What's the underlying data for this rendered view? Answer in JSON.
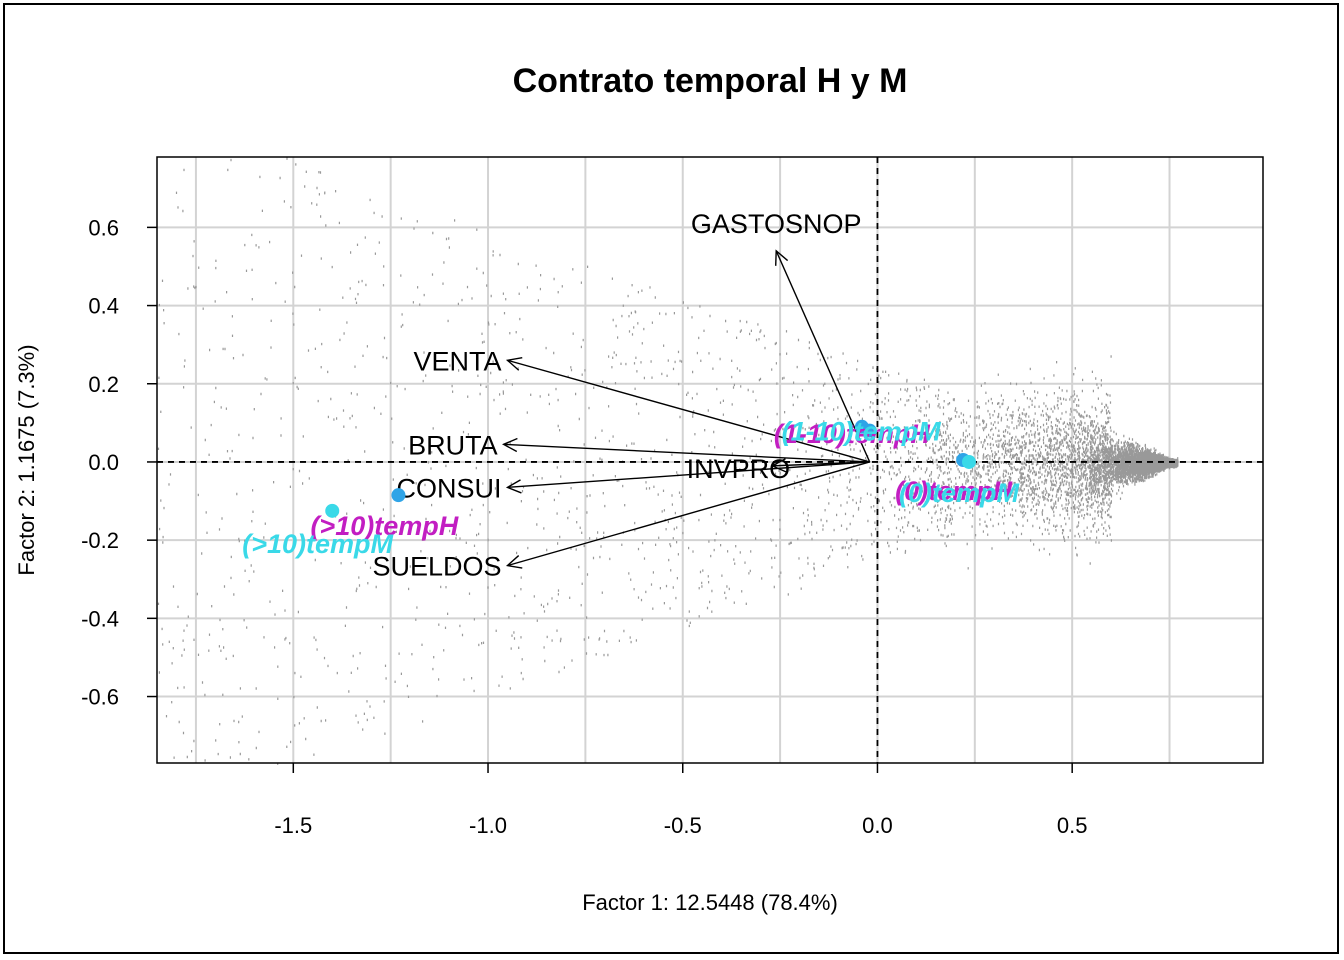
{
  "chart_data": {
    "type": "scatter",
    "title": "Contrato temporal H y M",
    "xlabel": "Factor 1: 12.5448 (78.4%)",
    "ylabel": "Factor 2: 1.1675 (7.3%)",
    "xlim": [
      -1.85,
      0.99
    ],
    "ylim": [
      -0.77,
      0.78
    ],
    "x_ticks": [
      -1.5,
      -1.0,
      -0.5,
      0.0,
      0.5
    ],
    "x_tick_labels": [
      "-1.5",
      "-1.0",
      "-0.5",
      "0.0",
      "0.5"
    ],
    "y_ticks": [
      0.6,
      0.4,
      0.2,
      0.0,
      -0.2,
      -0.4,
      -0.6
    ],
    "y_tick_labels": [
      "0.6",
      "0.4",
      "0.2",
      "0.0",
      "-0.2",
      "-0.4",
      "-0.6"
    ],
    "grid": true,
    "reference_lines": {
      "x": 0,
      "y": 0,
      "style": "dashed"
    },
    "variables": [
      {
        "label": "GASTOSNOP",
        "x": -0.26,
        "y": 0.54
      },
      {
        "label": "VENTA",
        "x": -0.95,
        "y": 0.26
      },
      {
        "label": "BRUTA",
        "x": -0.96,
        "y": 0.045
      },
      {
        "label": "CONSUI",
        "x": -0.95,
        "y": -0.065
      },
      {
        "label": "SUELDOS",
        "x": -0.95,
        "y": -0.265
      },
      {
        "label": "INVPRO",
        "x": -0.27,
        "y": -0.01
      }
    ],
    "categories": [
      {
        "label": "(1-10)tempH",
        "x": -0.04,
        "y": 0.09,
        "color": "#c21ec2",
        "point_color": "#2fa4e7"
      },
      {
        "label": "(1-10)tempM",
        "x": -0.02,
        "y": 0.08,
        "color": "#3ad9e8",
        "point_color": "#2fa4e7"
      },
      {
        "label": "(0)tempH",
        "x": 0.22,
        "y": 0.005,
        "color": "#c21ec2",
        "point_color": "#2fa4e7"
      },
      {
        "label": "(0)tempM",
        "x": 0.235,
        "y": 0.0,
        "color": "#3ad9e8",
        "point_color": "#3ad9e8"
      },
      {
        "label": "(>10)tempH",
        "x": -1.23,
        "y": -0.085,
        "color": "#c21ec2",
        "point_color": "#2fa4e7"
      },
      {
        "label": "(>10)tempM",
        "x": -1.4,
        "y": -0.125,
        "color": "#3ad9e8",
        "point_color": "#3ad9e8"
      }
    ],
    "cloud": {
      "color": "#999999",
      "dense_center": [
        0.55,
        0.0
      ],
      "x_max": 0.77,
      "x_min": -1.85
    }
  }
}
